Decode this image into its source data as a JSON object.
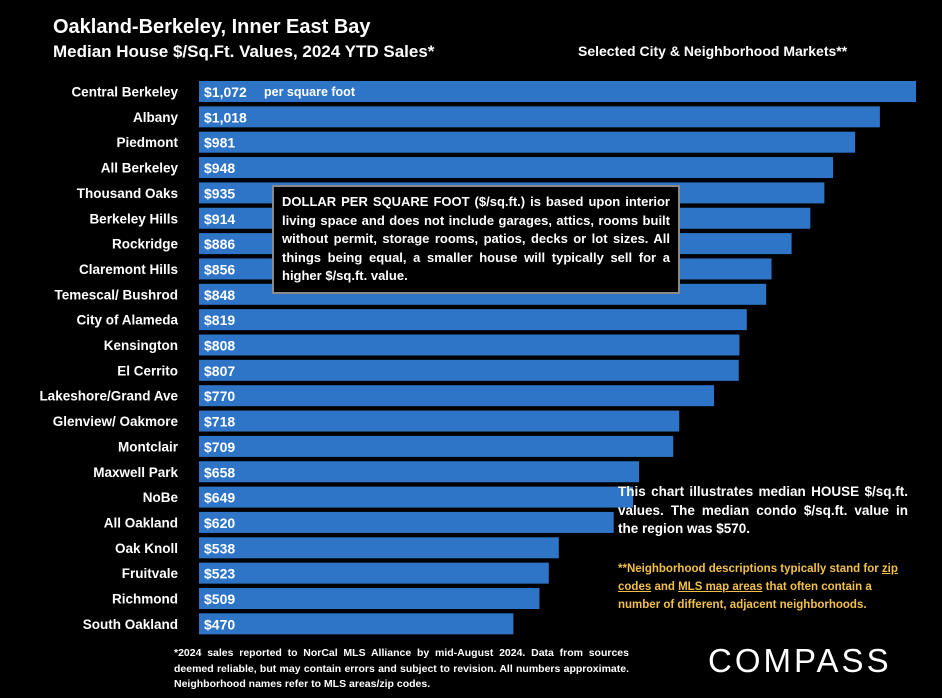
{
  "header": {
    "title": "Oakland-Berkeley, Inner East Bay",
    "subtitle": "Median House $/Sq.Ft. Values, 2024 YTD Sales*",
    "selected_markets": "Selected City & Neighborhood Markets**"
  },
  "chart_data": {
    "type": "bar",
    "orientation": "horizontal",
    "categories": [
      "Central Berkeley",
      "Albany",
      "Piedmont",
      "All Berkeley",
      "Thousand Oaks",
      "Berkeley Hills",
      "Rockridge",
      "Claremont Hills",
      "Temescal/ Bushrod",
      "City of Alameda",
      "Kensington",
      "El Cerrito",
      "Lakeshore/Grand Ave",
      "Glenview/ Oakmore",
      "Montclair",
      "Maxwell Park",
      "NoBe",
      "All Oakland",
      "Oak Knoll",
      "Fruitvale",
      "Richmond",
      "South Oakland"
    ],
    "values": [
      1072,
      1018,
      981,
      948,
      935,
      914,
      886,
      856,
      848,
      819,
      808,
      807,
      770,
      718,
      709,
      658,
      649,
      620,
      538,
      523,
      509,
      470
    ],
    "value_labels": [
      "$1,072",
      "$1,018",
      "$981",
      "$948",
      "$935",
      "$914",
      "$886",
      "$856",
      "$848",
      "$819",
      "$808",
      "$807",
      "$770",
      "$718",
      "$709",
      "$658",
      "$649",
      "$620",
      "$538",
      "$523",
      "$509",
      "$470"
    ],
    "first_bar_suffix": "per square foot",
    "bar_color": "#2f75c7"
  },
  "notes": {
    "definition": "DOLLAR PER SQUARE FOOT ($/sq.ft.) is based upon interior living space and does not include garages, attics, rooms built without permit, storage rooms, patios, decks or lot sizes. All things being equal, a smaller house will typically sell for a higher $/sq.ft. value.",
    "illustrates": "This chart illustrates median HOUSE $/sq.ft. values. The median condo $/sq.ft. value in the region was $570.",
    "nbhd_part1": "**Neighborhood descriptions typically stand for ",
    "nbhd_link1": "zip codes",
    "nbhd_part2": " and ",
    "nbhd_link2": "MLS map areas",
    "nbhd_part3": " that often contain a number of different, adjacent neighborhoods.",
    "footnote": "*2024 sales reported to NorCal MLS Alliance by mid-August 2024. Data from sources deemed reliable, but may contain errors and subject to revision. All numbers approximate. Neighborhood names refer to MLS areas/zip codes.",
    "nbhd_color": "#f2c04a"
  },
  "logo": {
    "text": "COMPASS"
  }
}
